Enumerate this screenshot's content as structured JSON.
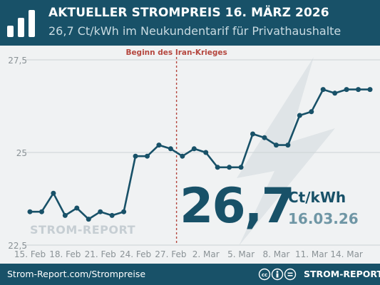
{
  "header": {
    "title": "AKTUELLER STROMPREIS 16. MÄRZ 2026",
    "subtitle": "26,7 Ct/kWh im Neukundentarif für Privathaushalte"
  },
  "highlight": {
    "value": "26,7",
    "unit": "Ct/kWh",
    "date": "16.03.26"
  },
  "watermark": "STROM-REPORT",
  "footer": {
    "url": "Strom-Report.com/Strompreise",
    "brand": "STROM-REPORT",
    "license_icons": "cc-by-nd-icon"
  },
  "colors": {
    "brand": "#185168",
    "line": "#185168",
    "annotation": "#b5473f",
    "bolt": "#dfe4e7"
  },
  "chart_data": {
    "type": "line",
    "title": "",
    "xlabel": "",
    "ylabel": "",
    "ylim": [
      22.5,
      27.5
    ],
    "xlim": [
      "15. Feb",
      "16. Mar"
    ],
    "yticks": [
      "22.5",
      "25",
      "27.5"
    ],
    "xtick_labels": [
      "15. Feb",
      "18. Feb",
      "21. Feb",
      "24. Feb",
      "27. Feb",
      "2. Mar",
      "5. Mar",
      "8. Mar",
      "11. Mar",
      "14. Mar"
    ],
    "grid": "horizontal",
    "series": [
      {
        "x": [
          "15. Feb",
          "16. Feb",
          "17. Feb",
          "18. Feb",
          "19. Feb",
          "20. Feb",
          "21. Feb",
          "22. Feb",
          "23. Feb",
          "24. Feb",
          "25. Feb",
          "26. Feb",
          "27. Feb",
          "28. Feb",
          "1. Mar",
          "2. Mar",
          "3. Mar",
          "4. Mar",
          "5. Mar",
          "6. Mar",
          "7. Mar",
          "8. Mar",
          "9. Mar",
          "10. Mar",
          "11. Mar",
          "12. Mar",
          "13. Mar",
          "14. Mar",
          "15. Mar",
          "16. Mar"
        ],
        "values": [
          23.4,
          23.4,
          23.9,
          23.3,
          23.5,
          23.2,
          23.4,
          23.3,
          23.4,
          24.9,
          24.9,
          25.2,
          25.1,
          24.9,
          25.1,
          25.0,
          24.6,
          24.6,
          24.6,
          25.5,
          25.4,
          25.2,
          25.2,
          26.0,
          26.1,
          26.7,
          26.6,
          26.7,
          26.7,
          26.7
        ]
      }
    ],
    "annotations": [
      {
        "x": "28. Feb",
        "label": "Beginn des Iran-Krieges"
      }
    ]
  }
}
